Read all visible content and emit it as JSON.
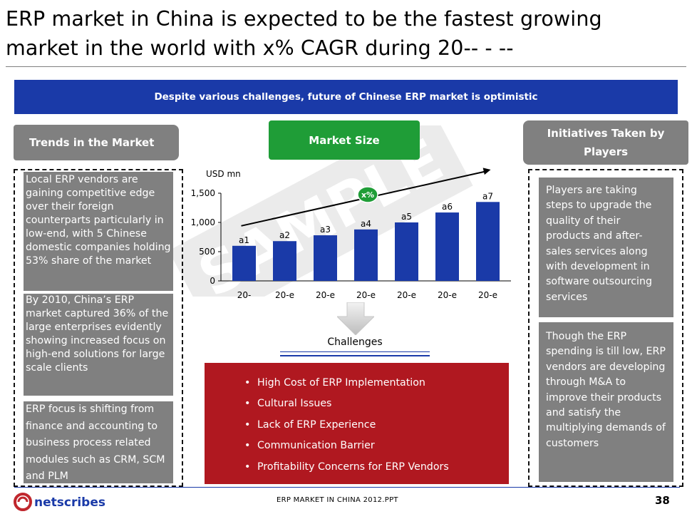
{
  "slide": {
    "title_line1": "ERP market in China is expected to be the fastest growing",
    "title_line2": "market in the world with x% CAGR during 20-- - --",
    "banner": "Despite various challenges, future of Chinese ERP market is optimistic",
    "watermark": "SAMPLE"
  },
  "left_panel": {
    "header": "Trends in the Market",
    "boxes": [
      "Local ERP vendors are gaining competitive edge over their foreign counterparts particularly in low-end, with 5 Chinese domestic companies holding 53% share of the market",
      "By 2010, China’s ERP market captured 36% of the large enterprises evidently showing increased focus on high-end solutions for large scale clients",
      "ERP focus is shifting from finance and accounting to business process related modules such as CRM, SCM and PLM"
    ]
  },
  "center_panel": {
    "header": "Market Size",
    "challenges_label": "Challenges",
    "challenges": [
      "High Cost of ERP Implementation",
      "Cultural Issues",
      "Lack of ERP Experience",
      "Communication Barrier",
      "Profitability Concerns for ERP Vendors"
    ]
  },
  "right_panel": {
    "header": "Initiatives Taken by Players",
    "boxes": [
      "Players are taking steps to upgrade the quality of their products and after-sales services along with development in software outsourcing services",
      "Though the ERP spending is till low, ERP vendors are developing through M&A to improve their products and satisfy the multiplying demands of customers"
    ]
  },
  "chart_data": {
    "type": "bar",
    "ylabel": "USD mn",
    "ylim": [
      0,
      1500
    ],
    "yticks": [
      "0",
      "500",
      "1,000",
      "1,500"
    ],
    "categories": [
      "20-",
      "20-e",
      "20-e",
      "20-e",
      "20-e",
      "20-e",
      "20-e"
    ],
    "values": [
      600,
      680,
      780,
      880,
      1000,
      1170,
      1350
    ],
    "data_labels": [
      "a1",
      "a2",
      "a3",
      "a4",
      "a5",
      "a6",
      "a7"
    ],
    "cagr_label": "x%",
    "bar_color": "#1a3aa8",
    "cagr_badge_color": "#1f9d37"
  },
  "footer": {
    "logo_text": "netscribes",
    "file_name": "ERP MARKET IN CHINA 2012.PPT",
    "page_number": "38"
  },
  "colors": {
    "navy": "#1a3aa8",
    "grey": "#808080",
    "green": "#1f9d37",
    "red": "#b01820"
  }
}
